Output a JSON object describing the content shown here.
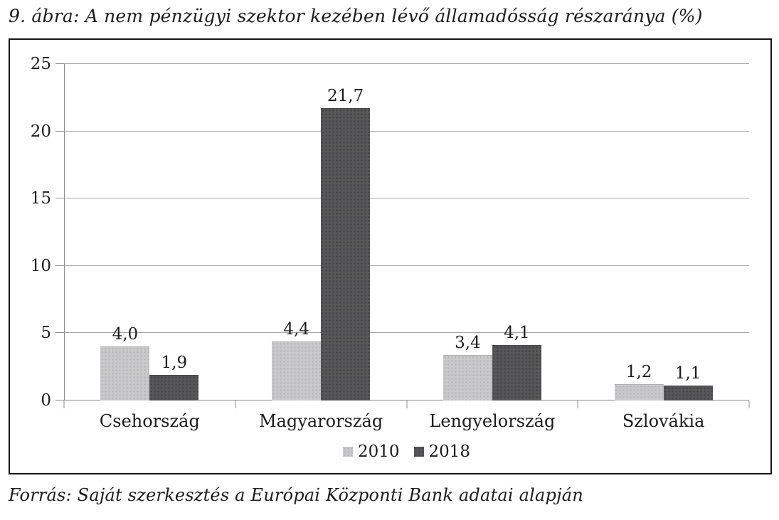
{
  "title": "9. ábra: A nem pénzügyi szektor kezében lévő államadósság részaránya (%)",
  "source": "Forrás: Saját szerkesztés a Európai Központi Bank adatai alapján",
  "colors": {
    "series_2010": "#c9c9c9",
    "series_2018": "#575757",
    "axis": "#8c8c8c",
    "gridline": "#a6a6a6",
    "frame_border": "#161616",
    "text": "#1c1c1c"
  },
  "chart_data": {
    "type": "bar",
    "title": "9. ábra: A nem pénzügyi szektor kezében lévő államadósság részaránya (%)",
    "categories": [
      "Csehország",
      "Magyarország",
      "Lengyelország",
      "Szlovákia"
    ],
    "series": [
      {
        "name": "2010",
        "color": "#c9c9c9",
        "values": [
          4.0,
          4.4,
          3.4,
          1.2
        ],
        "labels": [
          "4,0",
          "4,4",
          "3,4",
          "1,2"
        ]
      },
      {
        "name": "2018",
        "color": "#575757",
        "values": [
          1.9,
          21.7,
          4.1,
          1.1
        ],
        "labels": [
          "1,9",
          "21,7",
          "4,1",
          "1,1"
        ]
      }
    ],
    "xlabel": "",
    "ylabel": "",
    "ylim": [
      0,
      25
    ],
    "yticks": [
      0,
      5,
      10,
      15,
      20,
      25
    ],
    "grid": true,
    "legend_position": "bottom"
  }
}
